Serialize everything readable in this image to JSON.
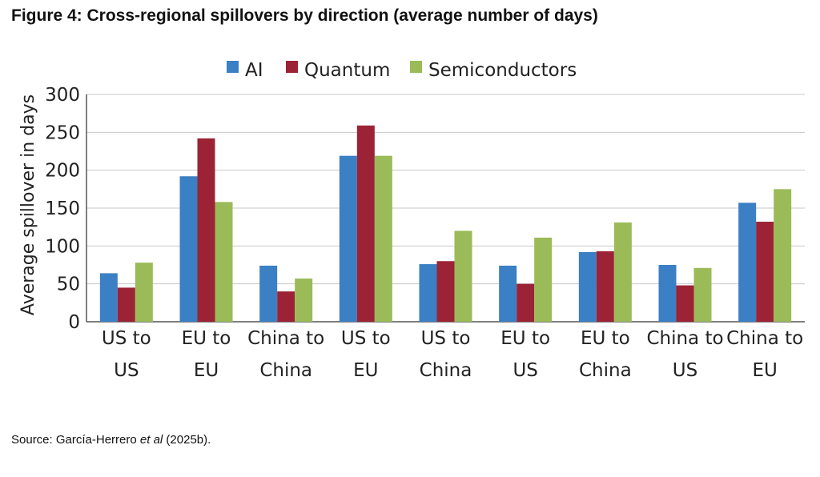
{
  "figure": {
    "title": "Figure 4: Cross-regional spillovers by direction (average number of days)",
    "source_prefix": "Source: García-Herrero ",
    "source_italic": "et al",
    "source_suffix": " (2025b)."
  },
  "chart_data": {
    "type": "bar",
    "title": "",
    "xlabel": "",
    "ylabel": "Average spillover in days",
    "ylim": [
      0,
      300
    ],
    "yticks": [
      0,
      50,
      100,
      150,
      200,
      250,
      300
    ],
    "grid": true,
    "legend_position": "top-center",
    "categories": [
      [
        "US to",
        "US"
      ],
      [
        "EU to",
        "EU"
      ],
      [
        "China to",
        "China"
      ],
      [
        "US to",
        "EU"
      ],
      [
        "US to",
        "China"
      ],
      [
        "EU to",
        "US"
      ],
      [
        "EU to",
        "China"
      ],
      [
        "China to",
        "US"
      ],
      [
        "China to",
        "EU"
      ]
    ],
    "series": [
      {
        "name": "AI",
        "color": "#3b7fc4",
        "values": [
          64,
          192,
          74,
          219,
          76,
          74,
          92,
          75,
          157
        ]
      },
      {
        "name": "Quantum",
        "color": "#9b2335",
        "values": [
          45,
          242,
          40,
          259,
          80,
          50,
          93,
          48,
          132
        ]
      },
      {
        "name": "Semiconductors",
        "color": "#9bbb59",
        "values": [
          78,
          158,
          57,
          219,
          120,
          111,
          131,
          71,
          175
        ]
      }
    ]
  }
}
